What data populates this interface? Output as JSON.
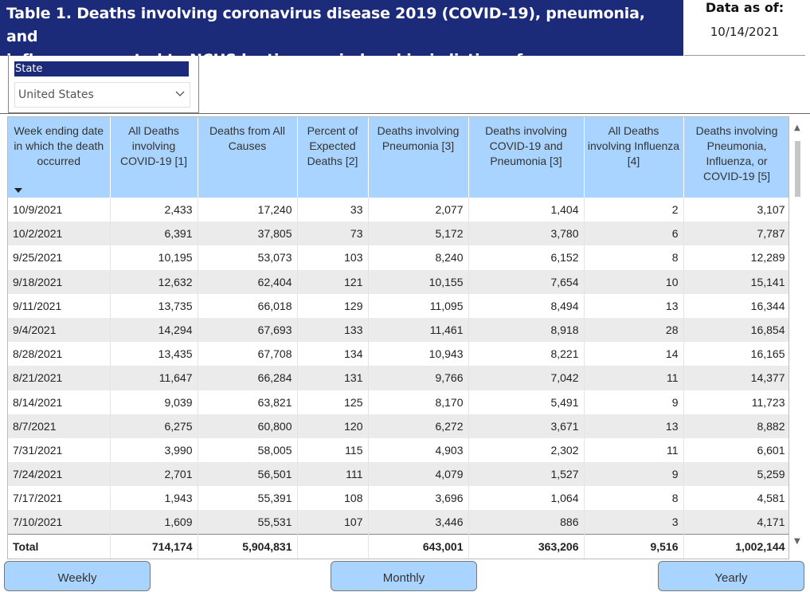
{
  "header": {
    "title": "Table 1. Deaths involving coronavirus disease 2019 (COVID-19), pneumonia, and influenza reported to NCHS by time-period and jurisdiction of occurrence.",
    "title_line1": "Table 1. Deaths involving coronavirus disease 2019 (COVID-19), pneumonia, and",
    "title_line2": "influenza reported to NCHS by time-period and jurisdiction of occurrence.",
    "data_as_of_label": "Data as of:",
    "data_as_of_date": "10/14/2021"
  },
  "filter": {
    "label": "State",
    "selected": "United States",
    "icon": "chevron-down-icon"
  },
  "table": {
    "columns": [
      "Week ending date in which the death occurred",
      "All Deaths involving COVID-19 [1]",
      "Deaths from All Causes",
      "Percent of Expected Deaths [2]",
      "Deaths involving Pneumonia [3]",
      "Deaths involving COVID-19 and Pneumonia [3]",
      "All Deaths involving Influenza [4]",
      "Deaths involving Pneumonia, Influenza, or COVID-19 [5]"
    ],
    "rows": [
      [
        "10/9/2021",
        "2,433",
        "17,240",
        "33",
        "2,077",
        "1,404",
        "2",
        "3,107"
      ],
      [
        "10/2/2021",
        "6,391",
        "37,805",
        "73",
        "5,172",
        "3,780",
        "6",
        "7,787"
      ],
      [
        "9/25/2021",
        "10,195",
        "53,073",
        "103",
        "8,240",
        "6,152",
        "8",
        "12,289"
      ],
      [
        "9/18/2021",
        "12,632",
        "62,404",
        "121",
        "10,155",
        "7,654",
        "10",
        "15,141"
      ],
      [
        "9/11/2021",
        "13,735",
        "66,018",
        "129",
        "11,095",
        "8,494",
        "13",
        "16,344"
      ],
      [
        "9/4/2021",
        "14,294",
        "67,693",
        "133",
        "11,461",
        "8,918",
        "28",
        "16,854"
      ],
      [
        "8/28/2021",
        "13,435",
        "67,708",
        "134",
        "10,943",
        "8,221",
        "14",
        "16,165"
      ],
      [
        "8/21/2021",
        "11,647",
        "66,284",
        "131",
        "9,766",
        "7,042",
        "11",
        "14,377"
      ],
      [
        "8/14/2021",
        "9,039",
        "63,821",
        "125",
        "8,170",
        "5,491",
        "9",
        "11,723"
      ],
      [
        "8/7/2021",
        "6,275",
        "60,800",
        "120",
        "6,272",
        "3,671",
        "13",
        "8,882"
      ],
      [
        "7/31/2021",
        "3,990",
        "58,005",
        "115",
        "4,903",
        "2,302",
        "11",
        "6,601"
      ],
      [
        "7/24/2021",
        "2,701",
        "56,501",
        "111",
        "4,079",
        "1,527",
        "9",
        "5,259"
      ],
      [
        "7/17/2021",
        "1,943",
        "55,391",
        "108",
        "3,696",
        "1,064",
        "8",
        "4,581"
      ],
      [
        "7/10/2021",
        "1,609",
        "55,531",
        "107",
        "3,446",
        "886",
        "3",
        "4,171"
      ]
    ],
    "total": [
      "Total",
      "714,174",
      "5,904,831",
      "",
      "643,001",
      "363,206",
      "9,516",
      "1,002,144"
    ],
    "sort_indicator": "sort-descending-icon"
  },
  "buttons": {
    "weekly": "Weekly",
    "monthly": "Monthly",
    "yearly": "Yearly"
  },
  "colors": {
    "title_bg": "#1c2a7a",
    "header_bg": "#a9d4ff",
    "button_bg": "#a9d4ff",
    "alt_row": "#ebebeb"
  }
}
